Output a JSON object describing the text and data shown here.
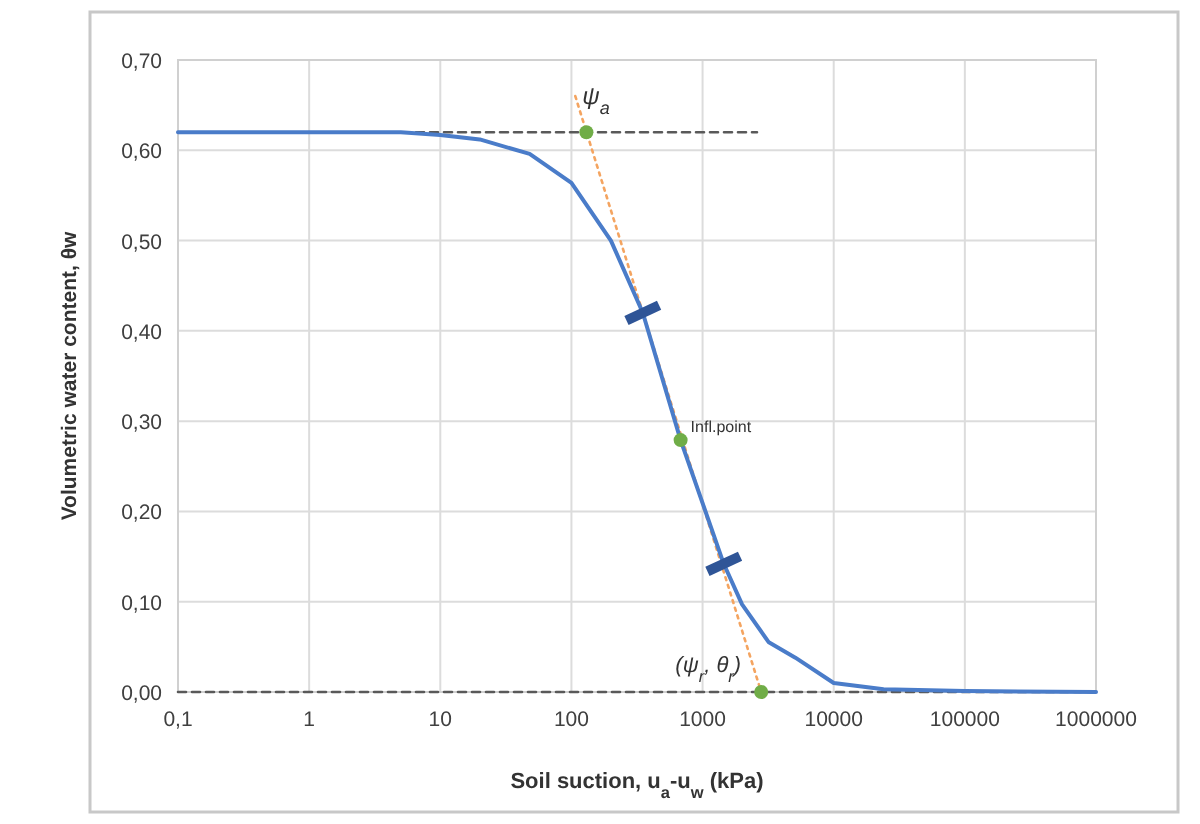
{
  "chart_data": {
    "type": "line",
    "xlabel": "Soil suction, u$_{a}$-u$_{w}$ (kPa)",
    "ylabel": "Volumetric water content,  θw",
    "log": "x",
    "grid": true,
    "xlim": [
      0.1,
      1000000
    ],
    "xticks": [
      {
        "value": 0.1,
        "label": "0,1"
      },
      1,
      10,
      100,
      1000,
      10000,
      100000,
      1000000
    ],
    "ylim": [
      0,
      0.7
    ],
    "yticks": [
      {
        "value": 0,
        "label": "0,00"
      },
      {
        "value": 0.1,
        "label": "0,10"
      },
      {
        "value": 0.2,
        "label": "0,20"
      },
      {
        "value": 0.3,
        "label": "0,30"
      },
      {
        "value": 0.4,
        "label": "0,40"
      },
      {
        "value": 0.5,
        "label": "0,50"
      },
      {
        "value": 0.6,
        "label": "0,60"
      },
      {
        "value": 0.7,
        "label": "0,70"
      }
    ],
    "series": [
      {
        "color": "#595959",
        "line_style": "dashed",
        "marker": "none",
        "x": [
          0.1,
          2600
        ],
        "values": [
          0.62,
          0.62
        ]
      },
      {
        "color": "#595959",
        "line_style": "dashed",
        "marker": "none",
        "x": [
          0.1,
          1000000
        ],
        "values": [
          0,
          0
        ]
      },
      {
        "color": "#f4a460",
        "line_style": "dotted",
        "marker": "none",
        "x": [
          107,
          2800
        ],
        "values": [
          0.66,
          0
        ]
      },
      {
        "color": "#4a7cc9",
        "line_style": "solid",
        "marker": "none",
        "x": [
          0.1,
          1,
          5,
          10,
          20,
          48,
          100,
          200,
          350,
          680,
          1450,
          2000,
          3200,
          5100,
          10000,
          24000,
          100000,
          1000000
        ],
        "values": [
          0.62,
          0.62,
          0.62,
          0.617,
          0.612,
          0.596,
          0.564,
          0.5,
          0.42,
          0.279,
          0.142,
          0.097,
          0.055,
          0.038,
          0.01,
          0.003,
          0.001,
          0
        ]
      },
      {
        "type": "scatter",
        "color": "#2f5597",
        "marker": "diamond",
        "x": [
          350,
          1450
        ],
        "values": [
          0.42,
          0.142
        ]
      },
      {
        "type": "scatter",
        "color": "#70ad47",
        "marker": "circle",
        "x": [
          130,
          680,
          2800
        ],
        "values": [
          0.62,
          0.279,
          0
        ]
      }
    ],
    "annotations": [
      {
        "text": "ψ$_{a}$",
        "x": 130,
        "y": 0.62
      },
      {
        "text": "Infl.point",
        "x": 680,
        "y": 0.279
      },
      {
        "text": "(ψ$_{r}$, θ$_{r}$)",
        "x": 2800,
        "y": 0
      }
    ]
  }
}
